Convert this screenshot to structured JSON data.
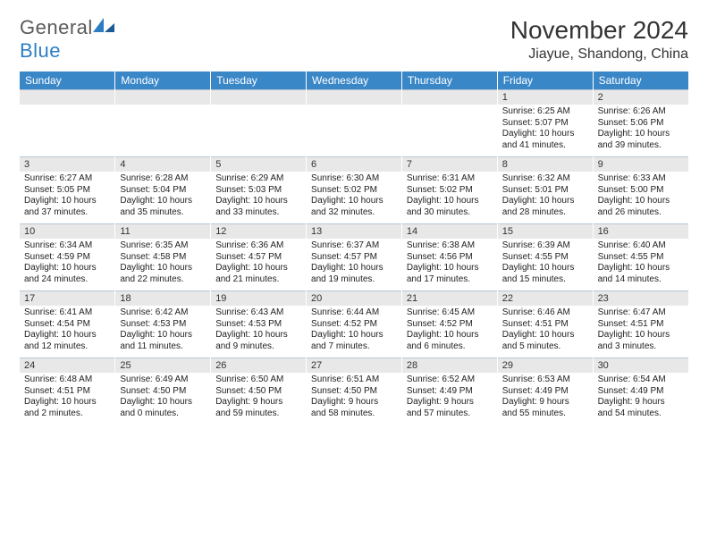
{
  "brand": {
    "word1": "General",
    "word2": "Blue"
  },
  "title": "November 2024",
  "location": "Jiayue, Shandong, China",
  "colors": {
    "header_bg": "#3a87c8",
    "header_text": "#ffffff",
    "daynum_bg": "#e8e8e8",
    "daynum_border": "#b8c6d4",
    "body_text": "#222222",
    "brand_gray": "#5a5a5a",
    "brand_blue": "#2d7dc4",
    "page_bg": "#ffffff"
  },
  "typography": {
    "month_title_size": 28,
    "location_size": 16,
    "day_header_size": 12,
    "daynum_size": 11,
    "cell_size": 10
  },
  "day_names": [
    "Sunday",
    "Monday",
    "Tuesday",
    "Wednesday",
    "Thursday",
    "Friday",
    "Saturday"
  ],
  "weeks": [
    [
      null,
      null,
      null,
      null,
      null,
      {
        "n": "1",
        "sr": "Sunrise: 6:25 AM",
        "ss": "Sunset: 5:07 PM",
        "d1": "Daylight: 10 hours",
        "d2": "and 41 minutes."
      },
      {
        "n": "2",
        "sr": "Sunrise: 6:26 AM",
        "ss": "Sunset: 5:06 PM",
        "d1": "Daylight: 10 hours",
        "d2": "and 39 minutes."
      }
    ],
    [
      {
        "n": "3",
        "sr": "Sunrise: 6:27 AM",
        "ss": "Sunset: 5:05 PM",
        "d1": "Daylight: 10 hours",
        "d2": "and 37 minutes."
      },
      {
        "n": "4",
        "sr": "Sunrise: 6:28 AM",
        "ss": "Sunset: 5:04 PM",
        "d1": "Daylight: 10 hours",
        "d2": "and 35 minutes."
      },
      {
        "n": "5",
        "sr": "Sunrise: 6:29 AM",
        "ss": "Sunset: 5:03 PM",
        "d1": "Daylight: 10 hours",
        "d2": "and 33 minutes."
      },
      {
        "n": "6",
        "sr": "Sunrise: 6:30 AM",
        "ss": "Sunset: 5:02 PM",
        "d1": "Daylight: 10 hours",
        "d2": "and 32 minutes."
      },
      {
        "n": "7",
        "sr": "Sunrise: 6:31 AM",
        "ss": "Sunset: 5:02 PM",
        "d1": "Daylight: 10 hours",
        "d2": "and 30 minutes."
      },
      {
        "n": "8",
        "sr": "Sunrise: 6:32 AM",
        "ss": "Sunset: 5:01 PM",
        "d1": "Daylight: 10 hours",
        "d2": "and 28 minutes."
      },
      {
        "n": "9",
        "sr": "Sunrise: 6:33 AM",
        "ss": "Sunset: 5:00 PM",
        "d1": "Daylight: 10 hours",
        "d2": "and 26 minutes."
      }
    ],
    [
      {
        "n": "10",
        "sr": "Sunrise: 6:34 AM",
        "ss": "Sunset: 4:59 PM",
        "d1": "Daylight: 10 hours",
        "d2": "and 24 minutes."
      },
      {
        "n": "11",
        "sr": "Sunrise: 6:35 AM",
        "ss": "Sunset: 4:58 PM",
        "d1": "Daylight: 10 hours",
        "d2": "and 22 minutes."
      },
      {
        "n": "12",
        "sr": "Sunrise: 6:36 AM",
        "ss": "Sunset: 4:57 PM",
        "d1": "Daylight: 10 hours",
        "d2": "and 21 minutes."
      },
      {
        "n": "13",
        "sr": "Sunrise: 6:37 AM",
        "ss": "Sunset: 4:57 PM",
        "d1": "Daylight: 10 hours",
        "d2": "and 19 minutes."
      },
      {
        "n": "14",
        "sr": "Sunrise: 6:38 AM",
        "ss": "Sunset: 4:56 PM",
        "d1": "Daylight: 10 hours",
        "d2": "and 17 minutes."
      },
      {
        "n": "15",
        "sr": "Sunrise: 6:39 AM",
        "ss": "Sunset: 4:55 PM",
        "d1": "Daylight: 10 hours",
        "d2": "and 15 minutes."
      },
      {
        "n": "16",
        "sr": "Sunrise: 6:40 AM",
        "ss": "Sunset: 4:55 PM",
        "d1": "Daylight: 10 hours",
        "d2": "and 14 minutes."
      }
    ],
    [
      {
        "n": "17",
        "sr": "Sunrise: 6:41 AM",
        "ss": "Sunset: 4:54 PM",
        "d1": "Daylight: 10 hours",
        "d2": "and 12 minutes."
      },
      {
        "n": "18",
        "sr": "Sunrise: 6:42 AM",
        "ss": "Sunset: 4:53 PM",
        "d1": "Daylight: 10 hours",
        "d2": "and 11 minutes."
      },
      {
        "n": "19",
        "sr": "Sunrise: 6:43 AM",
        "ss": "Sunset: 4:53 PM",
        "d1": "Daylight: 10 hours",
        "d2": "and 9 minutes."
      },
      {
        "n": "20",
        "sr": "Sunrise: 6:44 AM",
        "ss": "Sunset: 4:52 PM",
        "d1": "Daylight: 10 hours",
        "d2": "and 7 minutes."
      },
      {
        "n": "21",
        "sr": "Sunrise: 6:45 AM",
        "ss": "Sunset: 4:52 PM",
        "d1": "Daylight: 10 hours",
        "d2": "and 6 minutes."
      },
      {
        "n": "22",
        "sr": "Sunrise: 6:46 AM",
        "ss": "Sunset: 4:51 PM",
        "d1": "Daylight: 10 hours",
        "d2": "and 5 minutes."
      },
      {
        "n": "23",
        "sr": "Sunrise: 6:47 AM",
        "ss": "Sunset: 4:51 PM",
        "d1": "Daylight: 10 hours",
        "d2": "and 3 minutes."
      }
    ],
    [
      {
        "n": "24",
        "sr": "Sunrise: 6:48 AM",
        "ss": "Sunset: 4:51 PM",
        "d1": "Daylight: 10 hours",
        "d2": "and 2 minutes."
      },
      {
        "n": "25",
        "sr": "Sunrise: 6:49 AM",
        "ss": "Sunset: 4:50 PM",
        "d1": "Daylight: 10 hours",
        "d2": "and 0 minutes."
      },
      {
        "n": "26",
        "sr": "Sunrise: 6:50 AM",
        "ss": "Sunset: 4:50 PM",
        "d1": "Daylight: 9 hours",
        "d2": "and 59 minutes."
      },
      {
        "n": "27",
        "sr": "Sunrise: 6:51 AM",
        "ss": "Sunset: 4:50 PM",
        "d1": "Daylight: 9 hours",
        "d2": "and 58 minutes."
      },
      {
        "n": "28",
        "sr": "Sunrise: 6:52 AM",
        "ss": "Sunset: 4:49 PM",
        "d1": "Daylight: 9 hours",
        "d2": "and 57 minutes."
      },
      {
        "n": "29",
        "sr": "Sunrise: 6:53 AM",
        "ss": "Sunset: 4:49 PM",
        "d1": "Daylight: 9 hours",
        "d2": "and 55 minutes."
      },
      {
        "n": "30",
        "sr": "Sunrise: 6:54 AM",
        "ss": "Sunset: 4:49 PM",
        "d1": "Daylight: 9 hours",
        "d2": "and 54 minutes."
      }
    ]
  ]
}
